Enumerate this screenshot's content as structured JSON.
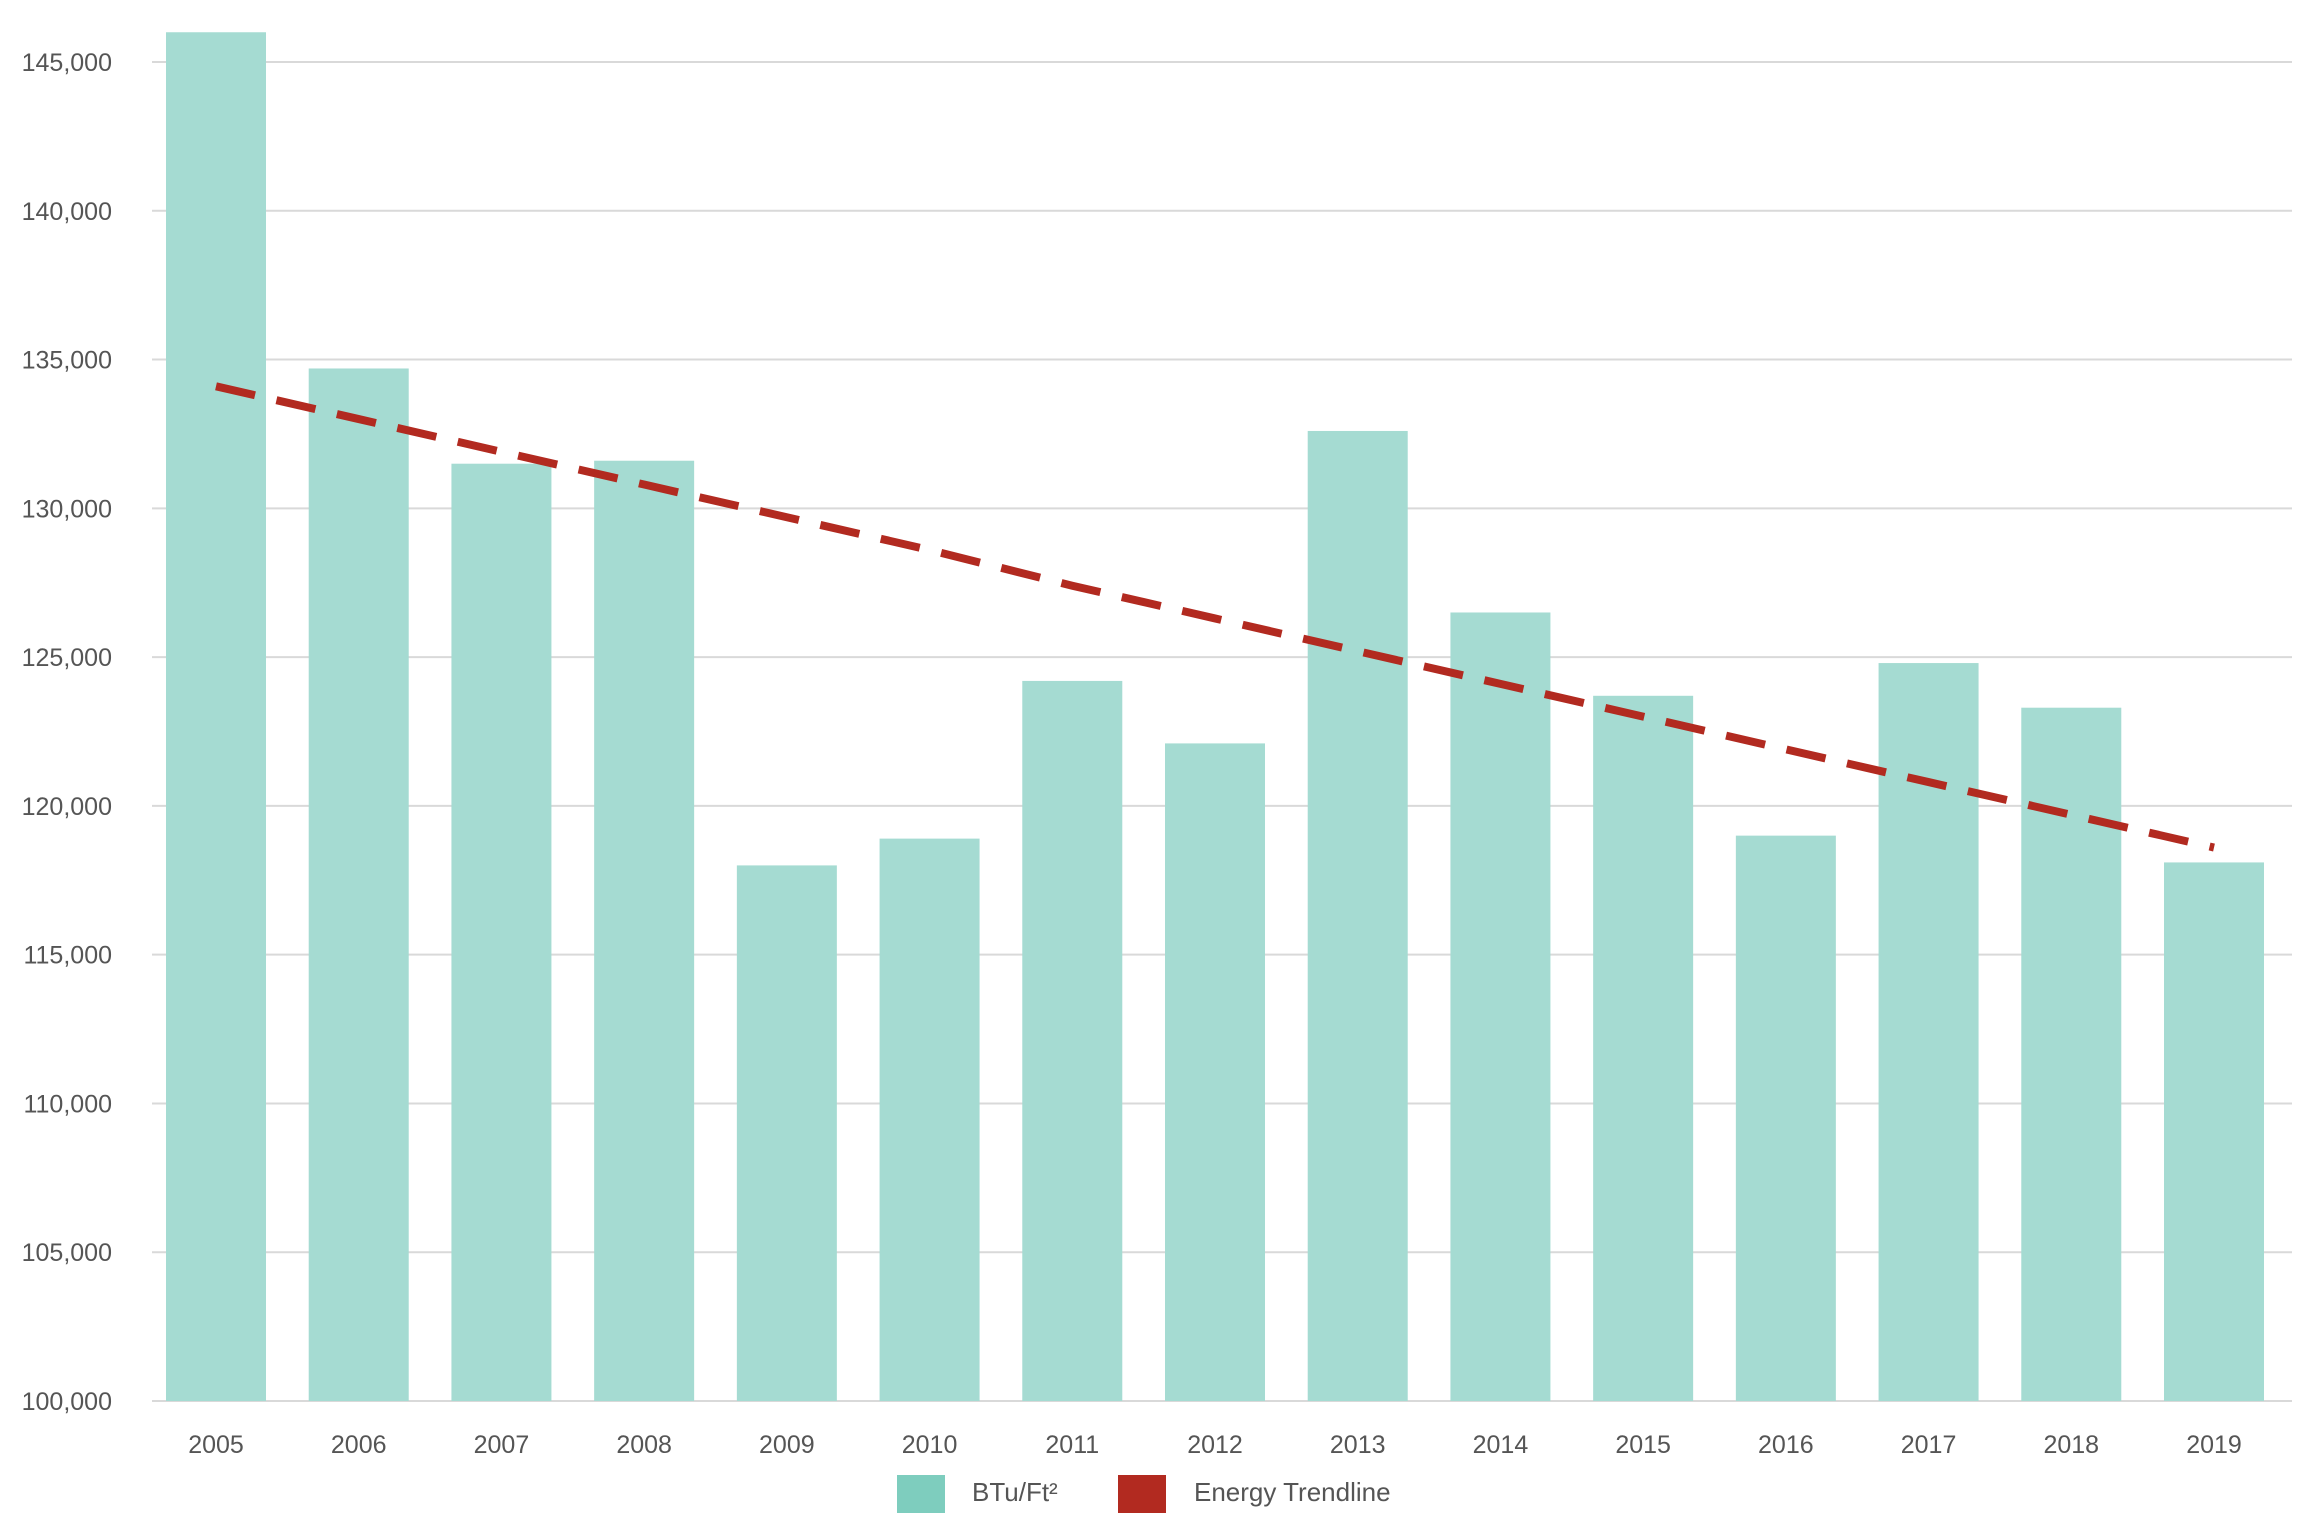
{
  "chart_data": {
    "type": "bar",
    "categories": [
      "2005",
      "2006",
      "2007",
      "2008",
      "2009",
      "2010",
      "2011",
      "2012",
      "2013",
      "2014",
      "2015",
      "2016",
      "2017",
      "2018",
      "2019"
    ],
    "series": [
      {
        "name": "BTu/Ft²",
        "color": "#a5dbd2",
        "values": [
          146000,
          134700,
          131500,
          131600,
          118000,
          118900,
          124200,
          122100,
          132600,
          126500,
          123700,
          119000,
          124800,
          123300,
          118100
        ]
      },
      {
        "name": "Energy Trendline",
        "color": "#b22a20",
        "type": "line",
        "style": "dashed",
        "values": [
          134100,
          133000,
          131900,
          130800,
          129700,
          128600,
          127400,
          126300,
          125200,
          124100,
          123000,
          121900,
          120800,
          119700,
          118600
        ]
      }
    ],
    "title": "",
    "xlabel": "",
    "ylabel": "",
    "ylim": [
      100000,
      145000
    ],
    "yticks": [
      "100,000",
      "105,000",
      "110,000",
      "115,000",
      "120,000",
      "125,000",
      "130,000",
      "135,000",
      "140,000",
      "145,000"
    ],
    "grid": true,
    "legend_position": "bottom",
    "legend": [
      {
        "label": "BTu/Ft²",
        "color": "#7ecdbe"
      },
      {
        "label": "Energy Trendline",
        "color": "#b22a20"
      }
    ]
  }
}
